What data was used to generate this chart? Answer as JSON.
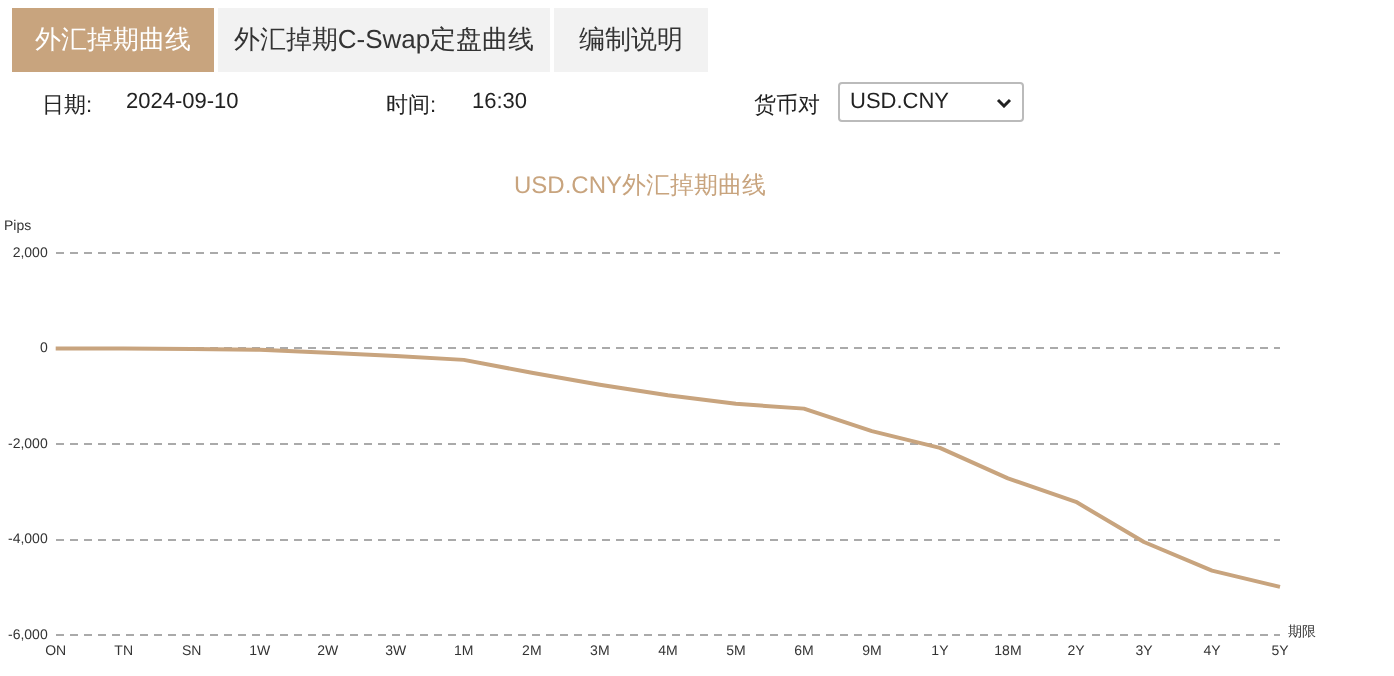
{
  "chart_data": {
    "type": "line",
    "title": "USD.CNY外汇掉期曲线",
    "ylabel": "Pips",
    "xlabel": "期限",
    "annotations": [
      "外汇掉期曲线",
      "外汇掉期C-Swap定盘曲线",
      "编制说明",
      "日期:",
      "2024-09-10",
      "时间:",
      "16:30",
      "货币对",
      "USD.CNY"
    ],
    "categories": [
      "ON",
      "TN",
      "SN",
      "1W",
      "2W",
      "3W",
      "1M",
      "2M",
      "3M",
      "4M",
      "5M",
      "6M",
      "9M",
      "1Y",
      "18M",
      "2Y",
      "3Y",
      "4Y",
      "5Y"
    ],
    "series": [
      {
        "color": "#c8a47e",
        "values": [
          0,
          0,
          -10,
          -30,
          -90,
          -160,
          -240,
          -510,
          -760,
          -980,
          -1160,
          -1260,
          -1730,
          -2080,
          -2720,
          -3210,
          -4050,
          -4650,
          -4990
        ]
      }
    ],
    "ylim": [
      -6000,
      2000
    ],
    "yticks": [
      {
        "value": 2000,
        "label": "2,000"
      },
      0,
      {
        "value": -2000,
        "label": "-2,000"
      },
      {
        "value": -4000,
        "label": "-4,000"
      },
      {
        "value": -6000,
        "label": "-6,000"
      }
    ],
    "grid": "y",
    "legend": false,
    "marker": "none",
    "line_style": "solid"
  }
}
